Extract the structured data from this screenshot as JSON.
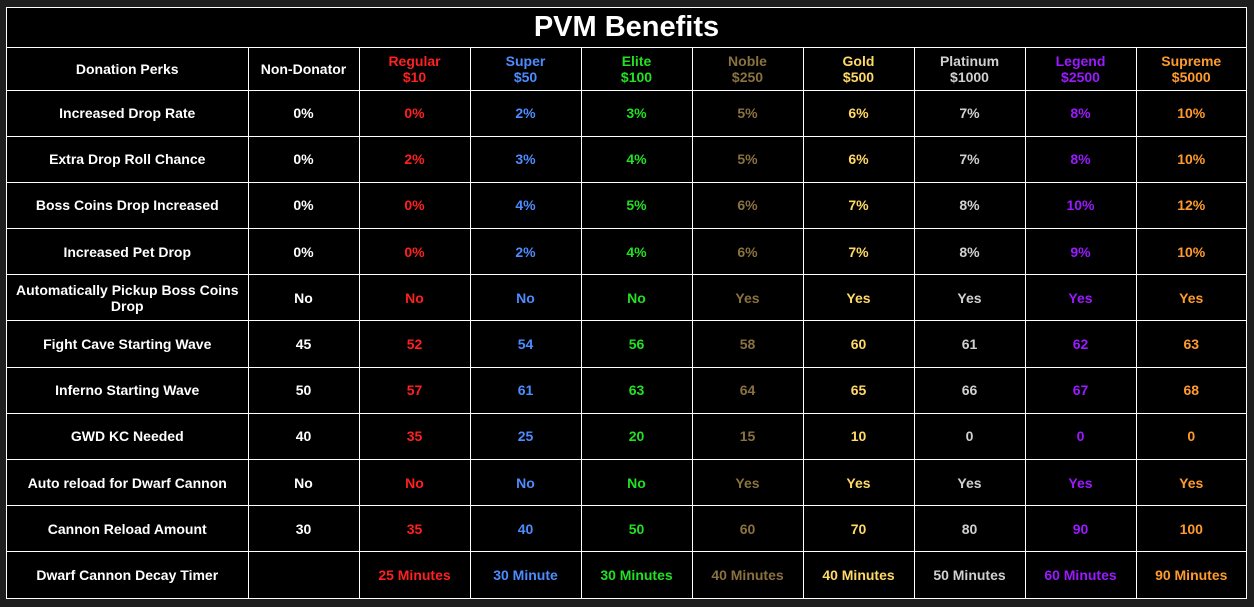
{
  "title": "PVM Benefits",
  "header": {
    "perks_label": "Donation Perks",
    "non_donator_label": "Non-Donator"
  },
  "tiers": [
    {
      "name": "Regular",
      "price": "$10",
      "color": "#ff2020"
    },
    {
      "name": "Super",
      "price": "$50",
      "color": "#4d8cff"
    },
    {
      "name": "Elite",
      "price": "$100",
      "color": "#22e022"
    },
    {
      "name": "Noble",
      "price": "$250",
      "color": "#8a7140"
    },
    {
      "name": "Gold",
      "price": "$500",
      "color": "#ffd966"
    },
    {
      "name": "Platinum",
      "price": "$1000",
      "color": "#d0d0d0"
    },
    {
      "name": "Legend",
      "price": "$2500",
      "color": "#9b1aff"
    },
    {
      "name": "Supreme",
      "price": "$5000",
      "color": "#ff9a2e"
    }
  ],
  "rows": [
    {
      "perk": "Increased Drop Rate",
      "non_donator": "0%",
      "values": [
        "0%",
        "2%",
        "3%",
        "5%",
        "6%",
        "7%",
        "8%",
        "10%"
      ]
    },
    {
      "perk": "Extra Drop Roll Chance",
      "non_donator": "0%",
      "values": [
        "2%",
        "3%",
        "4%",
        "5%",
        "6%",
        "7%",
        "8%",
        "10%"
      ]
    },
    {
      "perk": "Boss Coins Drop Increased",
      "non_donator": "0%",
      "values": [
        "0%",
        "4%",
        "5%",
        "6%",
        "7%",
        "8%",
        "10%",
        "12%"
      ]
    },
    {
      "perk": "Increased Pet Drop",
      "non_donator": "0%",
      "values": [
        "0%",
        "2%",
        "4%",
        "6%",
        "7%",
        "8%",
        "9%",
        "10%"
      ]
    },
    {
      "perk": "Automatically Pickup Boss Coins Drop",
      "non_donator": "No",
      "values": [
        "No",
        "No",
        "No",
        "Yes",
        "Yes",
        "Yes",
        "Yes",
        "Yes"
      ]
    },
    {
      "perk": "Fight Cave Starting Wave",
      "non_donator": "45",
      "values": [
        "52",
        "54",
        "56",
        "58",
        "60",
        "61",
        "62",
        "63"
      ]
    },
    {
      "perk": "Inferno Starting Wave",
      "non_donator": "50",
      "values": [
        "57",
        "61",
        "63",
        "64",
        "65",
        "66",
        "67",
        "68"
      ]
    },
    {
      "perk": "GWD KC Needed",
      "non_donator": "40",
      "values": [
        "35",
        "25",
        "20",
        "15",
        "10",
        "0",
        "0",
        "0"
      ]
    },
    {
      "perk": "Auto reload for Dwarf Cannon",
      "non_donator": "No",
      "values": [
        "No",
        "No",
        "No",
        "Yes",
        "Yes",
        "Yes",
        "Yes",
        "Yes"
      ]
    },
    {
      "perk": "Cannon Reload Amount",
      "non_donator": "30",
      "values": [
        "35",
        "40",
        "50",
        "60",
        "70",
        "80",
        "90",
        "100"
      ]
    },
    {
      "perk": "Dwarf Cannon Decay Timer",
      "non_donator": "",
      "values": [
        "25 Minutes",
        "30 Minute",
        "30 Minutes",
        "40 Minutes",
        "40 Minutes",
        "50 Minutes",
        "60 Minutes",
        "90 Minutes"
      ]
    }
  ]
}
